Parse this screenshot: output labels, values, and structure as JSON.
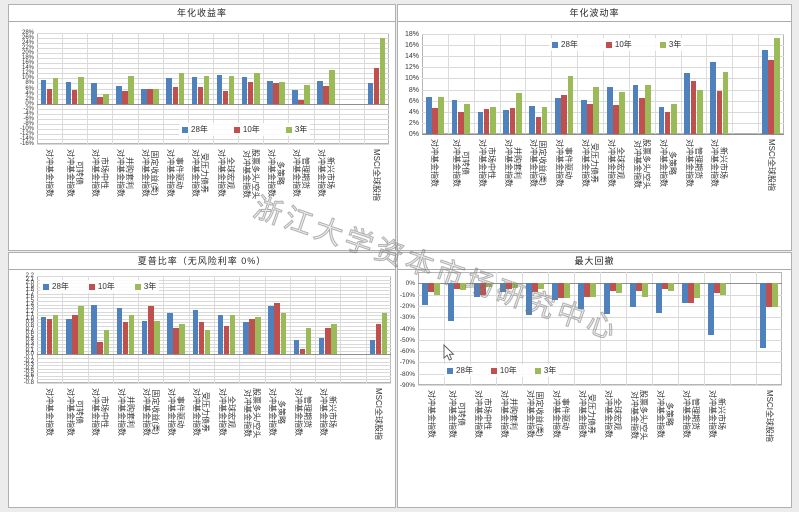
{
  "watermark": {
    "text": "浙江大学资本市场研究中心"
  },
  "legend_labels": [
    "28年",
    "10年",
    "3年"
  ],
  "colors": {
    "series_28yr": "#4F81BD",
    "series_10yr": "#C0504D",
    "series_3yr": "#9BBB59"
  },
  "categories": [
    "对冲基金指数",
    "可转债\n对冲基金指数",
    "市场中性\n对冲基金指数",
    "并购套利\n对冲基金指数",
    "固定收益(类)\n对冲基金指数",
    "事件驱动\n对冲基金指数",
    "受压力债券\n对冲基金指数",
    "全球宏观\n对冲基金指数",
    "股票多头/空头\n对冲基金指数",
    "多策略\n对冲基金指数",
    "管理期货\n对冲基金指数",
    "新兴市场\n对冲基金指数",
    "MSCI全球股指"
  ],
  "chart_data": [
    {
      "type": "bar",
      "title": "年化收益率",
      "ylim": [
        -16,
        28
      ],
      "yticks": {
        "max": 28,
        "min": -16,
        "step": 2,
        "suffix": "%",
        "dec": 0
      },
      "grid": true,
      "legend_position": "inside-lower-center",
      "series": [
        {
          "name": "28年",
          "color": "#4F81BD",
          "values": [
            9.5,
            8.5,
            8.0,
            7.0,
            6.0,
            10.0,
            10.5,
            11.5,
            10.5,
            9.0,
            5.5,
            9.0,
            8.0
          ]
        },
        {
          "name": "10年",
          "color": "#C0504D",
          "values": [
            6.0,
            5.5,
            2.5,
            5.0,
            6.0,
            6.5,
            6.5,
            5.0,
            8.5,
            8.0,
            1.5,
            7.0,
            14.0
          ]
        },
        {
          "name": "3年",
          "color": "#9BBB59",
          "values": [
            10.0,
            10.5,
            4.0,
            11.0,
            6.0,
            12.0,
            11.0,
            11.0,
            12.0,
            8.5,
            7.5,
            13.5,
            26.0
          ]
        }
      ]
    },
    {
      "type": "bar",
      "title": "年化波动率",
      "ylim": [
        0,
        18
      ],
      "yticks": {
        "max": 18,
        "min": 0,
        "step": 2,
        "suffix": "%",
        "dec": 0
      },
      "grid": true,
      "legend_position": "inside-top-center",
      "series": [
        {
          "name": "28年",
          "color": "#4F81BD",
          "values": [
            6.7,
            6.1,
            3.9,
            4.4,
            5.0,
            6.5,
            6.2,
            8.5,
            8.8,
            4.8,
            11.0,
            13.0,
            15.2
          ]
        },
        {
          "name": "10年",
          "color": "#C0504D",
          "values": [
            4.6,
            4.0,
            4.5,
            4.6,
            3.1,
            7.0,
            5.4,
            5.2,
            6.5,
            3.9,
            9.5,
            7.8,
            13.4
          ]
        },
        {
          "name": "3年",
          "color": "#9BBB59",
          "values": [
            6.7,
            5.4,
            4.8,
            7.3,
            4.8,
            10.5,
            8.4,
            7.6,
            8.8,
            5.4,
            7.9,
            11.2,
            17.3
          ]
        }
      ]
    },
    {
      "type": "bar",
      "title": "夏普比率（无风险利率 0%）",
      "ylim": [
        -0.8,
        2.2
      ],
      "yticks": {
        "max": 2.2,
        "min": -0.8,
        "step": 0.1,
        "suffix": "",
        "dec": 1
      },
      "grid": true,
      "legend_position": "inside-top-left",
      "series": [
        {
          "name": "28年",
          "color": "#4F81BD",
          "values": [
            1.05,
            1.0,
            1.4,
            1.3,
            0.95,
            1.15,
            1.25,
            1.1,
            0.9,
            1.35,
            0.4,
            0.45,
            0.4
          ]
        },
        {
          "name": "10年",
          "color": "#C0504D",
          "values": [
            1.0,
            1.1,
            0.35,
            0.9,
            1.35,
            0.75,
            0.9,
            0.8,
            1.0,
            1.45,
            0.15,
            0.75,
            0.85
          ]
        },
        {
          "name": "3年",
          "color": "#9BBB59",
          "values": [
            1.1,
            1.35,
            0.7,
            1.1,
            0.95,
            0.85,
            0.7,
            1.1,
            1.05,
            1.15,
            0.75,
            0.85,
            1.15
          ]
        }
      ]
    },
    {
      "type": "bar",
      "title": "最大回撤",
      "ylim": [
        -90,
        10
      ],
      "yticks": {
        "max": 0,
        "min": -90,
        "step": 10,
        "suffix": "%",
        "dec": 0
      },
      "grid": true,
      "legend_position": "inside-bottom-left",
      "series": [
        {
          "name": "28年",
          "color": "#4F81BD",
          "values": [
            -19,
            -33,
            -12,
            -8,
            -28,
            -15,
            -23,
            -27,
            -21,
            -26,
            -17,
            -46,
            -57
          ]
        },
        {
          "name": "10年",
          "color": "#C0504D",
          "values": [
            -8,
            -5,
            -10,
            -5,
            -8,
            -13,
            -12,
            -7,
            -7,
            -5,
            -17,
            -9,
            -21
          ]
        },
        {
          "name": "3年",
          "color": "#9BBB59",
          "values": [
            -10,
            -6,
            -3,
            -4,
            -5,
            -13,
            -12,
            -9,
            -12,
            -7,
            -13,
            -10,
            -21
          ]
        }
      ]
    }
  ]
}
